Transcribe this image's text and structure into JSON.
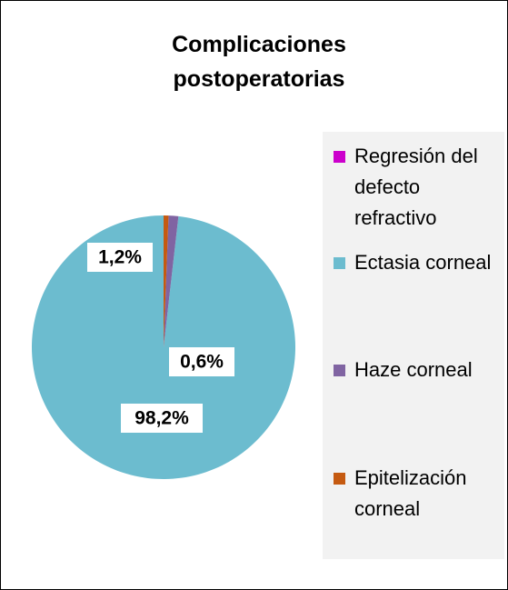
{
  "chart_data": {
    "type": "pie",
    "title": "Complicaciones postoperatorias",
    "categories": [
      "Regresión del defecto refractivo",
      "Ectasia corneal",
      "Haze corneal",
      "Epitelización corneal"
    ],
    "values": [
      0,
      98.2,
      1.2,
      0.6
    ],
    "value_labels": [
      null,
      "98,2%",
      "1,2%",
      "0,6%"
    ],
    "colors": [
      "#cc00cc",
      "#6cbccf",
      "#8064a2",
      "#c55a11"
    ],
    "legend": "right"
  }
}
